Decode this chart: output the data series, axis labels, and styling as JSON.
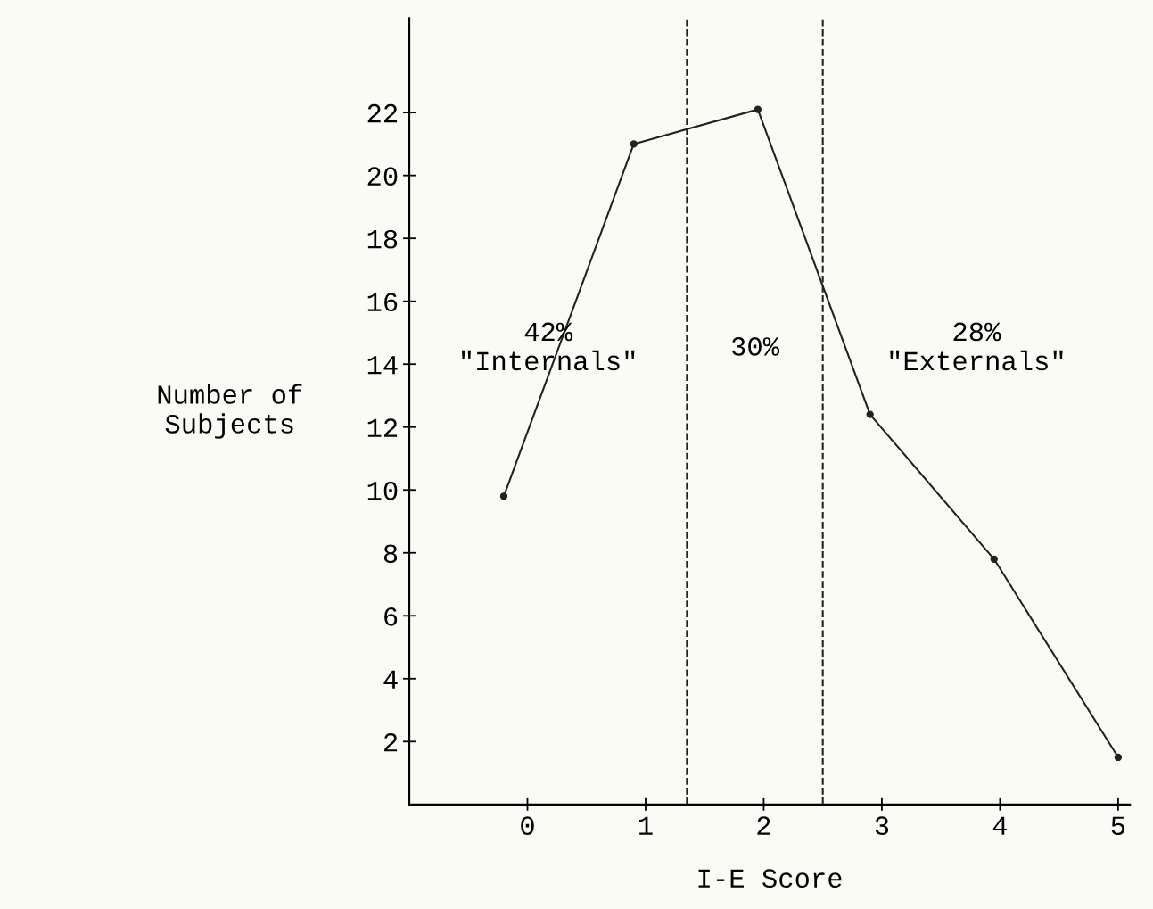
{
  "chart_data": {
    "type": "line",
    "xlabel": "I-E Score",
    "ylabel": "Number of\nSubjects",
    "x": [
      -0.2,
      0.9,
      1.95,
      2.9,
      3.95,
      5.0
    ],
    "series": [
      {
        "color": "#222222",
        "values": [
          9.8,
          21.0,
          22.1,
          12.4,
          7.8,
          1.5
        ]
      }
    ],
    "xlim": [
      -1,
      5.1
    ],
    "ylim": [
      0,
      25
    ],
    "xticks": [
      0,
      1,
      2,
      3,
      4,
      5
    ],
    "yticks": [
      2,
      4,
      6,
      8,
      10,
      12,
      14,
      16,
      18,
      20,
      22
    ],
    "ref_lines": [
      {
        "axis": "x",
        "value": 1.35,
        "line_style": "dashed",
        "color": "#222222"
      },
      {
        "axis": "x",
        "value": 2.5,
        "line_style": "dashed",
        "color": "#222222"
      }
    ],
    "annotations": [
      "42%\n\"Internals\"",
      "30%",
      "28%\n\"Externals\""
    ],
    "marker": "circle",
    "line_style": "solid",
    "grid": false,
    "legend": false
  }
}
